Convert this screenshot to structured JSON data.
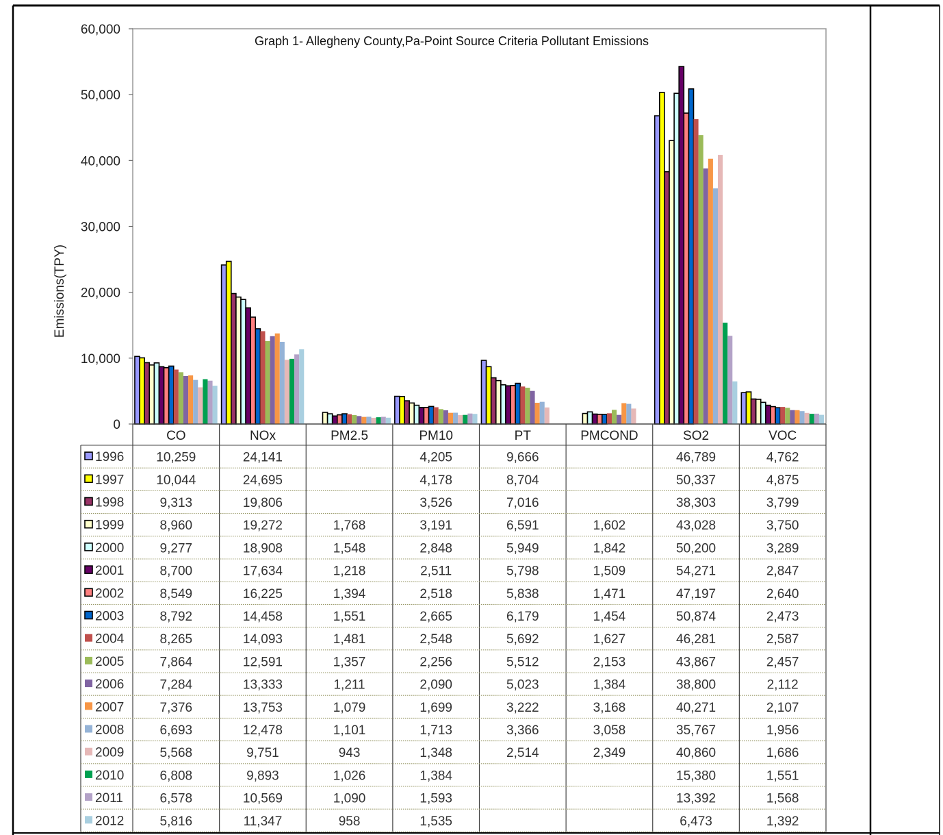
{
  "chart_data": {
    "type": "bar",
    "title": "Graph 1- Allegheny County,Pa-Point Source Criteria Pollutant Emissions",
    "xlabel": "",
    "ylabel": "Emissions(TPY)",
    "ylim": [
      0,
      60000
    ],
    "yticks": [
      0,
      10000,
      20000,
      30000,
      40000,
      50000,
      60000
    ],
    "ytick_labels": [
      "0",
      "10,000",
      "20,000",
      "30,000",
      "40,000",
      "50,000",
      "60,000"
    ],
    "grid": false,
    "legend": "data table below plot",
    "categories": [
      "CO",
      "NOx",
      "PM2.5",
      "PM10",
      "PT",
      "PMCOND",
      "SO2",
      "VOC"
    ],
    "series": [
      {
        "name": "1996",
        "color": "#9999ff",
        "outline": true,
        "values": [
          10259,
          24141,
          null,
          4205,
          9666,
          null,
          46789,
          4762
        ]
      },
      {
        "name": "1997",
        "color": "#ffff00",
        "outline": true,
        "values": [
          10044,
          24695,
          null,
          4178,
          8704,
          null,
          50337,
          4875
        ]
      },
      {
        "name": "1998",
        "color": "#993366",
        "outline": true,
        "values": [
          9313,
          19806,
          null,
          3526,
          7016,
          null,
          38303,
          3799
        ]
      },
      {
        "name": "1999",
        "color": "#ffffcc",
        "outline": true,
        "values": [
          8960,
          19272,
          1768,
          3191,
          6591,
          1602,
          43028,
          3750
        ]
      },
      {
        "name": "2000",
        "color": "#ccffff",
        "outline": true,
        "values": [
          9277,
          18908,
          1548,
          2848,
          5949,
          1842,
          50200,
          3289
        ]
      },
      {
        "name": "2001",
        "color": "#660066",
        "outline": true,
        "values": [
          8700,
          17634,
          1218,
          2511,
          5798,
          1509,
          54271,
          2847
        ]
      },
      {
        "name": "2002",
        "color": "#ff8080",
        "outline": true,
        "values": [
          8549,
          16225,
          1394,
          2518,
          5838,
          1471,
          47197,
          2640
        ]
      },
      {
        "name": "2003",
        "color": "#0066cc",
        "outline": true,
        "values": [
          8792,
          14458,
          1551,
          2665,
          6179,
          1454,
          50874,
          2473
        ]
      },
      {
        "name": "2004",
        "color": "#c0504d",
        "outline": false,
        "values": [
          8265,
          14093,
          1481,
          2548,
          5692,
          1627,
          46281,
          2587
        ]
      },
      {
        "name": "2005",
        "color": "#9bbb59",
        "outline": false,
        "values": [
          7864,
          12591,
          1357,
          2256,
          5512,
          2153,
          43867,
          2457
        ]
      },
      {
        "name": "2006",
        "color": "#8064a2",
        "outline": false,
        "values": [
          7284,
          13333,
          1211,
          2090,
          5023,
          1384,
          38800,
          2112
        ]
      },
      {
        "name": "2007",
        "color": "#f79646",
        "outline": false,
        "values": [
          7376,
          13753,
          1079,
          1699,
          3222,
          3168,
          40271,
          2107
        ]
      },
      {
        "name": "2008",
        "color": "#95b3d7",
        "outline": false,
        "values": [
          6693,
          12478,
          1101,
          1713,
          3366,
          3058,
          35767,
          1956
        ]
      },
      {
        "name": "2009",
        "color": "#e6b8b7",
        "outline": false,
        "values": [
          5568,
          9751,
          943,
          1348,
          2514,
          2349,
          40860,
          1686
        ]
      },
      {
        "name": "2010",
        "color": "#00a050",
        "outline": false,
        "values": [
          6808,
          9893,
          1026,
          1384,
          null,
          null,
          15380,
          1551
        ]
      },
      {
        "name": "2011",
        "color": "#b3a2c7",
        "outline": false,
        "values": [
          6578,
          10569,
          1090,
          1593,
          null,
          null,
          13392,
          1568
        ]
      },
      {
        "name": "2012",
        "color": "#a9cfe0",
        "outline": false,
        "values": [
          5816,
          11347,
          958,
          1535,
          null,
          null,
          6473,
          1392
        ]
      }
    ]
  },
  "table": {
    "rows": [
      [
        "10,259",
        "24,141",
        "",
        "4,205",
        "9,666",
        "",
        "46,789",
        "4,762"
      ],
      [
        "10,044",
        "24,695",
        "",
        "4,178",
        "8,704",
        "",
        "50,337",
        "4,875"
      ],
      [
        "9,313",
        "19,806",
        "",
        "3,526",
        "7,016",
        "",
        "38,303",
        "3,799"
      ],
      [
        "8,960",
        "19,272",
        "1,768",
        "3,191",
        "6,591",
        "1,602",
        "43,028",
        "3,750"
      ],
      [
        "9,277",
        "18,908",
        "1,548",
        "2,848",
        "5,949",
        "1,842",
        "50,200",
        "3,289"
      ],
      [
        "8,700",
        "17,634",
        "1,218",
        "2,511",
        "5,798",
        "1,509",
        "54,271",
        "2,847"
      ],
      [
        "8,549",
        "16,225",
        "1,394",
        "2,518",
        "5,838",
        "1,471",
        "47,197",
        "2,640"
      ],
      [
        "8,792",
        "14,458",
        "1,551",
        "2,665",
        "6,179",
        "1,454",
        "50,874",
        "2,473"
      ],
      [
        "8,265",
        "14,093",
        "1,481",
        "2,548",
        "5,692",
        "1,627",
        "46,281",
        "2,587"
      ],
      [
        "7,864",
        "12,591",
        "1,357",
        "2,256",
        "5,512",
        "2,153",
        "43,867",
        "2,457"
      ],
      [
        "7,284",
        "13,333",
        "1,211",
        "2,090",
        "5,023",
        "1,384",
        "38,800",
        "2,112"
      ],
      [
        "7,376",
        "13,753",
        "1,079",
        "1,699",
        "3,222",
        "3,168",
        "40,271",
        "2,107"
      ],
      [
        "6,693",
        "12,478",
        "1,101",
        "1,713",
        "3,366",
        "3,058",
        "35,767",
        "1,956"
      ],
      [
        "5,568",
        "9,751",
        "943",
        "1,348",
        "2,514",
        "2,349",
        "40,860",
        "1,686"
      ],
      [
        "6,808",
        "9,893",
        "1,026",
        "1,384",
        "",
        "",
        "15,380",
        "1,551"
      ],
      [
        "6,578",
        "10,569",
        "1,090",
        "1,593",
        "",
        "",
        "13,392",
        "1,568"
      ],
      [
        "5,816",
        "11,347",
        "958",
        "1,535",
        "",
        "",
        "6,473",
        "1,392"
      ]
    ]
  }
}
